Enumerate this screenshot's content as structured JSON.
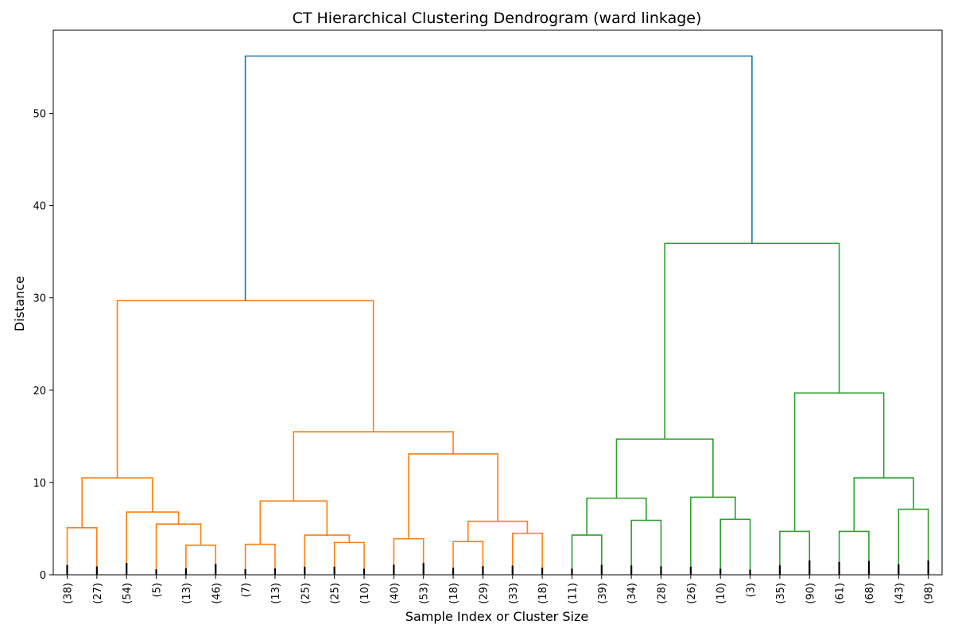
{
  "chart_data": {
    "type": "dendrogram",
    "title": "CT Hierarchical Clustering Dendrogram (ward linkage)",
    "xlabel": "Sample Index or Cluster Size",
    "ylabel": "Distance",
    "ylim": [
      0,
      59
    ],
    "yticks": [
      0,
      10,
      20,
      30,
      40,
      50
    ],
    "colors": {
      "cluster_a": "#ff7f0e",
      "cluster_b": "#2ca02c",
      "root": "#1f77b4",
      "axis": "#000000",
      "leaf_marks": "#000000"
    },
    "leaves": [
      "(38)",
      "(27)",
      "(54)",
      "(5)",
      "(13)",
      "(46)",
      "(7)",
      "(13)",
      "(25)",
      "(25)",
      "(10)",
      "(40)",
      "(53)",
      "(18)",
      "(29)",
      "(33)",
      "(18)",
      "(11)",
      "(39)",
      "(34)",
      "(28)",
      "(26)",
      "(10)",
      "(3)",
      "(35)",
      "(90)",
      "(61)",
      "(68)",
      "(43)",
      "(98)"
    ],
    "merges": [
      {
        "left": 0,
        "right": 1,
        "height": 5.1,
        "color": "#ff7f0e"
      },
      {
        "left": 4,
        "right": 5,
        "height": 3.2,
        "color": "#ff7f0e"
      },
      {
        "left": 3,
        "right": "m1",
        "height": 5.5,
        "color": "#ff7f0e"
      },
      {
        "left": 2,
        "right": "m2",
        "height": 6.8,
        "color": "#ff7f0e"
      },
      {
        "left": "m0",
        "right": "m3",
        "height": 10.5,
        "color": "#ff7f0e"
      },
      {
        "left": 6,
        "right": 7,
        "height": 3.3,
        "color": "#ff7f0e"
      },
      {
        "left": 9,
        "right": 10,
        "height": 3.5,
        "color": "#ff7f0e"
      },
      {
        "left": 8,
        "right": "m6",
        "height": 4.3,
        "color": "#ff7f0e"
      },
      {
        "left": "m5",
        "right": "m7",
        "height": 8.0,
        "color": "#ff7f0e"
      },
      {
        "left": 11,
        "right": 12,
        "height": 3.9,
        "color": "#ff7f0e"
      },
      {
        "left": 13,
        "right": 14,
        "height": 3.6,
        "color": "#ff7f0e"
      },
      {
        "left": 15,
        "right": 16,
        "height": 4.5,
        "color": "#ff7f0e"
      },
      {
        "left": "m10",
        "right": "m11",
        "height": 5.8,
        "color": "#ff7f0e"
      },
      {
        "left": "m9",
        "right": "m12",
        "height": 13.1,
        "color": "#ff7f0e"
      },
      {
        "left": "m8",
        "right": "m13",
        "height": 15.5,
        "color": "#ff7f0e"
      },
      {
        "left": "m4",
        "right": "m14",
        "height": 29.7,
        "color": "#ff7f0e"
      },
      {
        "left": 17,
        "right": 18,
        "height": 4.3,
        "color": "#2ca02c"
      },
      {
        "left": 19,
        "right": 20,
        "height": 5.9,
        "color": "#2ca02c"
      },
      {
        "left": "m16",
        "right": "m17",
        "height": 8.3,
        "color": "#2ca02c"
      },
      {
        "left": 22,
        "right": 23,
        "height": 6.0,
        "color": "#2ca02c"
      },
      {
        "left": 21,
        "right": "m19",
        "height": 8.4,
        "color": "#2ca02c"
      },
      {
        "left": "m18",
        "right": "m20",
        "height": 14.7,
        "color": "#2ca02c"
      },
      {
        "left": 24,
        "right": 25,
        "height": 4.7,
        "color": "#2ca02c"
      },
      {
        "left": 26,
        "right": 27,
        "height": 4.7,
        "color": "#2ca02c"
      },
      {
        "left": 28,
        "right": 29,
        "height": 7.1,
        "color": "#2ca02c"
      },
      {
        "left": "m23",
        "right": "m24",
        "height": 10.5,
        "color": "#2ca02c"
      },
      {
        "left": "m22",
        "right": "m25",
        "height": 19.7,
        "color": "#2ca02c"
      },
      {
        "left": "m21",
        "right": "m26",
        "height": 35.9,
        "color": "#2ca02c"
      },
      {
        "left": "m15",
        "right": "m27",
        "height": 56.2,
        "color": "#1f77b4"
      }
    ]
  }
}
